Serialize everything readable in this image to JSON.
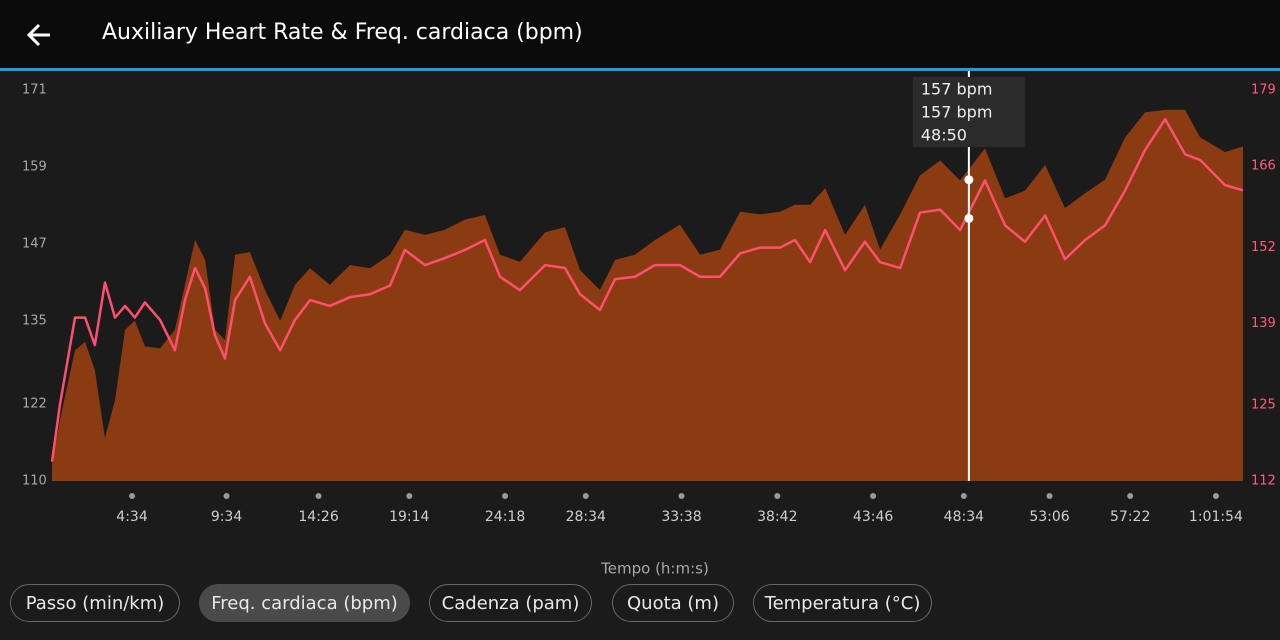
{
  "header": {
    "title": "Auxiliary Heart Rate & Freq. cardiaca (bpm)"
  },
  "chart_data": {
    "type": "combo",
    "xlabel": "Tempo (h:m:s)",
    "x": [
      20,
      45,
      93,
      125,
      156,
      188,
      220,
      252,
      283,
      315,
      363,
      410,
      442,
      474,
      506,
      537,
      569,
      601,
      648,
      696,
      744,
      791,
      839,
      902,
      966,
      1029,
      1093,
      1140,
      1204,
      1267,
      1331,
      1394,
      1442,
      1505,
      1585,
      1648,
      1696,
      1759,
      1807,
      1870,
      1934,
      2013,
      2077,
      2140,
      2204,
      2267,
      2331,
      2378,
      2426,
      2474,
      2537,
      2600,
      2648,
      2712,
      2775,
      2839,
      2902,
      2981,
      3045,
      3108,
      3172,
      3235,
      3299,
      3362,
      3426,
      3489,
      3553,
      3616,
      3664,
      3743,
      3800
    ],
    "series": [
      {
        "type": "area",
        "axis": "y",
        "color": "#8a3b12",
        "values": [
          112.5,
          119.5,
          130.4,
          131.7,
          127.3,
          116.7,
          122.6,
          133.6,
          135,
          131,
          130.7,
          133.6,
          140.6,
          147.6,
          144.5,
          133.6,
          132,
          145.3,
          145.7,
          139.8,
          135,
          140.6,
          143.2,
          140.6,
          143.7,
          143.2,
          145.3,
          149.2,
          148.4,
          149.2,
          150.8,
          151.5,
          145.3,
          144.2,
          148.8,
          149.6,
          142.9,
          139.8,
          144.5,
          145.3,
          147.6,
          150,
          145.3,
          146.1,
          152,
          151.6,
          152,
          153.1,
          153.1,
          155.7,
          148.4,
          153.1,
          146.1,
          151.6,
          157.7,
          160,
          156.9,
          161.9,
          154.1,
          155.3,
          159.3,
          152.6,
          154.9,
          157,
          163.6,
          167.5,
          167.9,
          167.9,
          163.6,
          161.3,
          162.2
        ]
      },
      {
        "type": "line",
        "axis": "y2",
        "color": "#ff4f6e",
        "values": [
          115.3,
          125,
          140,
          140,
          135.3,
          146,
          140,
          142,
          140,
          142.6,
          139.6,
          134.4,
          143,
          148.5,
          145,
          137,
          133,
          143,
          147,
          139,
          134.4,
          139.6,
          143,
          142,
          143.5,
          144,
          145.5,
          151.6,
          149,
          150.2,
          151.6,
          153.3,
          147,
          144.7,
          149,
          148.5,
          144,
          141.3,
          146.6,
          147,
          149,
          149,
          147,
          147,
          151,
          152,
          152,
          153.3,
          149.5,
          155,
          148.1,
          153,
          149.5,
          148.5,
          158,
          158.5,
          155,
          163.5,
          155.8,
          153,
          157.5,
          150,
          153.3,
          155.8,
          161.8,
          168.7,
          174,
          168,
          167,
          162.7,
          161.8
        ]
      }
    ],
    "xlim": [
      20,
      3800
    ],
    "xticks": [
      {
        "value": 274,
        "label": "4:34"
      },
      {
        "value": 574,
        "label": "9:34"
      },
      {
        "value": 866,
        "label": "14:26"
      },
      {
        "value": 1154,
        "label": "19:14"
      },
      {
        "value": 1458,
        "label": "24:18"
      },
      {
        "value": 1714,
        "label": "28:34"
      },
      {
        "value": 2018,
        "label": "33:38"
      },
      {
        "value": 2322,
        "label": "38:42"
      },
      {
        "value": 2626,
        "label": "43:46"
      },
      {
        "value": 2914,
        "label": "48:34"
      },
      {
        "value": 3186,
        "label": "53:06"
      },
      {
        "value": 3442,
        "label": "57:22"
      },
      {
        "value": 3714,
        "label": "1:01:54"
      }
    ],
    "ylim": [
      110,
      171
    ],
    "yticks": [
      110,
      122,
      135,
      147,
      159,
      171
    ],
    "y2lim": [
      112,
      179
    ],
    "y2ticks": [
      112,
      125,
      139,
      152,
      166,
      179
    ],
    "cursor": {
      "x": {
        "value": 2930,
        "label": "48:50"
      },
      "values": [
        157,
        157
      ],
      "value_labels": [
        "157 bpm",
        "157 bpm"
      ]
    }
  },
  "tabs": [
    "Passo (min/km)",
    "Freq. cardiaca (bpm)",
    "Cadenza (pam)",
    "Quota (m)",
    "Temperatura (°C)"
  ],
  "selected_tab": 1
}
